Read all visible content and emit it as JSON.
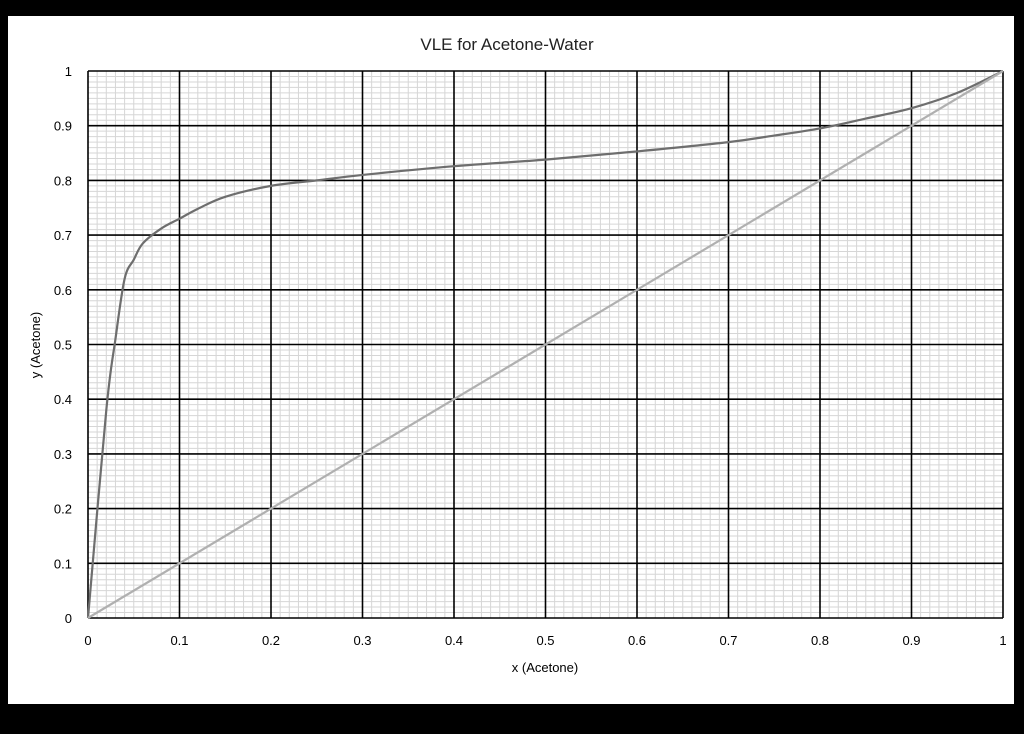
{
  "chart_data": {
    "type": "line",
    "title": "VLE for Acetone-Water",
    "xlabel": "x (Acetone)",
    "ylabel": "y (Acetone)",
    "xlim": [
      0,
      1
    ],
    "ylim": [
      0,
      1
    ],
    "x_ticks": [
      "0",
      "0.1",
      "0.2",
      "0.3",
      "0.4",
      "0.5",
      "0.6",
      "0.7",
      "0.8",
      "0.9",
      "1"
    ],
    "y_ticks": [
      "0",
      "0.1",
      "0.2",
      "0.3",
      "0.4",
      "0.5",
      "0.6",
      "0.7",
      "0.8",
      "0.9",
      "1"
    ],
    "major_grid": true,
    "minor_grid": true,
    "legend": "none",
    "series": [
      {
        "color": "#6e6e6e",
        "x": [
          0,
          0.02,
          0.03,
          0.04,
          0.05,
          0.06,
          0.08,
          0.1,
          0.12,
          0.15,
          0.2,
          0.25,
          0.3,
          0.4,
          0.5,
          0.6,
          0.7,
          0.75,
          0.8,
          0.85,
          0.9,
          0.95,
          1.0
        ],
        "y": [
          0,
          0.38,
          0.51,
          0.62,
          0.655,
          0.685,
          0.712,
          0.73,
          0.748,
          0.77,
          0.79,
          0.8,
          0.81,
          0.826,
          0.838,
          0.853,
          0.87,
          0.882,
          0.895,
          0.913,
          0.932,
          0.96,
          1.0
        ]
      },
      {
        "color": "#b0b0b0",
        "x": [
          0,
          1
        ],
        "y": [
          0,
          1
        ]
      }
    ]
  }
}
